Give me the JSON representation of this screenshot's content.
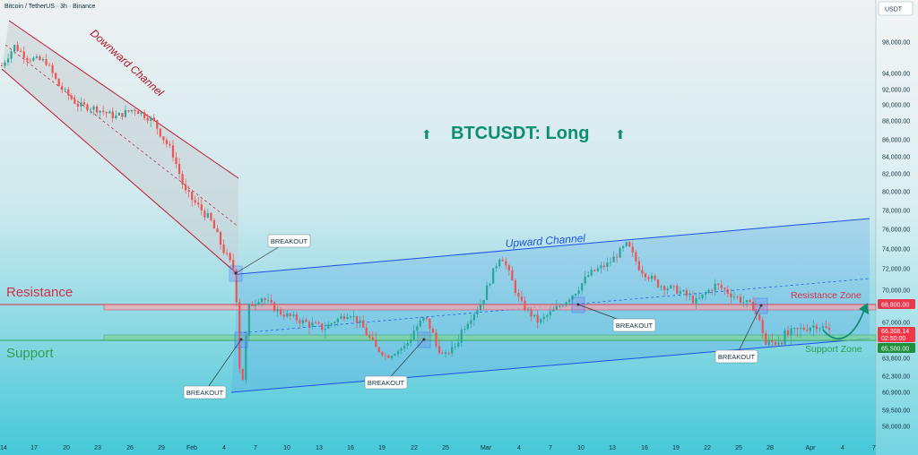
{
  "header": {
    "symbol_line": "Bitcoin / TetherUS · 3h · Binance",
    "currency_badge": "USDT"
  },
  "headline": "BTCUSDT: Long",
  "labels": {
    "resistance": "Resistance",
    "support": "Support",
    "resistance_zone": "Resistance Zone",
    "support_zone": "Support Zone",
    "downward_channel": "Downward Channel",
    "upward_channel": "Upward Channel",
    "breakout": "BREAKOUT"
  },
  "price_tags": {
    "resistance_price": "68,800.00",
    "current_price": "66,308.14",
    "countdown": "02:50:00",
    "support_price": "65,500.00"
  },
  "colors": {
    "bg_top": "#e9edef",
    "bg_bottom": "#47c9d9",
    "up_candle": "#26a69a",
    "down_candle": "#ef5350",
    "resistance": "#d6304a",
    "support": "#2e9e4f",
    "down_channel": "#c0182f",
    "up_channel": "#1c52e8",
    "headline": "#0b8f70"
  },
  "chart_data": {
    "type": "candlestick",
    "title": "Bitcoin / TetherUS · 3h · Binance",
    "y_axis": {
      "ticks": [
        "98,000.00",
        "94,000.00",
        "92,000.00",
        "90,000.00",
        "88,000.00",
        "86,000.00",
        "84,000.00",
        "82,000.00",
        "80,000.00",
        "78,000.00",
        "76,000.00",
        "74,000.00",
        "72,000.00",
        "70,000.00",
        "67,000.00",
        "63,800.00",
        "62,300.00",
        "60,900.00",
        "59,500.00",
        "58,000.00"
      ]
    },
    "x_axis": {
      "ticks": [
        "14",
        "17",
        "20",
        "23",
        "26",
        "29",
        "Feb",
        "4",
        "7",
        "10",
        "13",
        "16",
        "19",
        "22",
        "25",
        "Mar",
        "4",
        "7",
        "10",
        "13",
        "16",
        "19",
        "22",
        "25",
        "28",
        "Apr",
        "4",
        "7"
      ]
    },
    "levels": {
      "resistance": 68800,
      "support": 65500,
      "current": 66308.14
    },
    "price_path": [
      [
        0,
        95000
      ],
      [
        2,
        97500
      ],
      [
        4,
        96000
      ],
      [
        7,
        95500
      ],
      [
        9,
        92500
      ],
      [
        12,
        90000
      ],
      [
        15,
        89500
      ],
      [
        18,
        88500
      ],
      [
        21,
        89500
      ],
      [
        24,
        88000
      ],
      [
        27,
        84500
      ],
      [
        29,
        80000
      ],
      [
        31,
        78500
      ],
      [
        33,
        77000
      ],
      [
        35,
        74000
      ],
      [
        37,
        71500
      ],
      [
        37.5,
        64000
      ],
      [
        38,
        61000
      ],
      [
        39,
        68500
      ],
      [
        41,
        69500
      ],
      [
        44,
        68000
      ],
      [
        48,
        67000
      ],
      [
        51,
        66500
      ],
      [
        55,
        68000
      ],
      [
        58,
        66000
      ],
      [
        61,
        64000
      ],
      [
        64,
        65500
      ],
      [
        67,
        67500
      ],
      [
        70,
        64000
      ],
      [
        73,
        66500
      ],
      [
        76,
        69000
      ],
      [
        79,
        73500
      ],
      [
        82,
        69000
      ],
      [
        85,
        67000
      ],
      [
        88,
        68500
      ],
      [
        91,
        70000
      ],
      [
        93,
        71500
      ],
      [
        96,
        72500
      ],
      [
        99,
        74500
      ],
      [
        101,
        72000
      ],
      [
        104,
        70500
      ],
      [
        107,
        70000
      ],
      [
        110,
        69000
      ],
      [
        113,
        70500
      ],
      [
        116,
        69500
      ],
      [
        119,
        68500
      ],
      [
        121,
        65500
      ],
      [
        124,
        66000
      ],
      [
        127,
        66500
      ],
      [
        129,
        66800
      ],
      [
        131,
        66308
      ]
    ],
    "annotations": [
      "Downward Channel",
      "Upward Channel",
      "Resistance",
      "Support",
      "Resistance Zone",
      "Support Zone",
      "BREAKOUT",
      "BREAKOUT",
      "BREAKOUT",
      "BREAKOUT",
      "BREAKOUT",
      "BTCUSDT: Long"
    ]
  }
}
